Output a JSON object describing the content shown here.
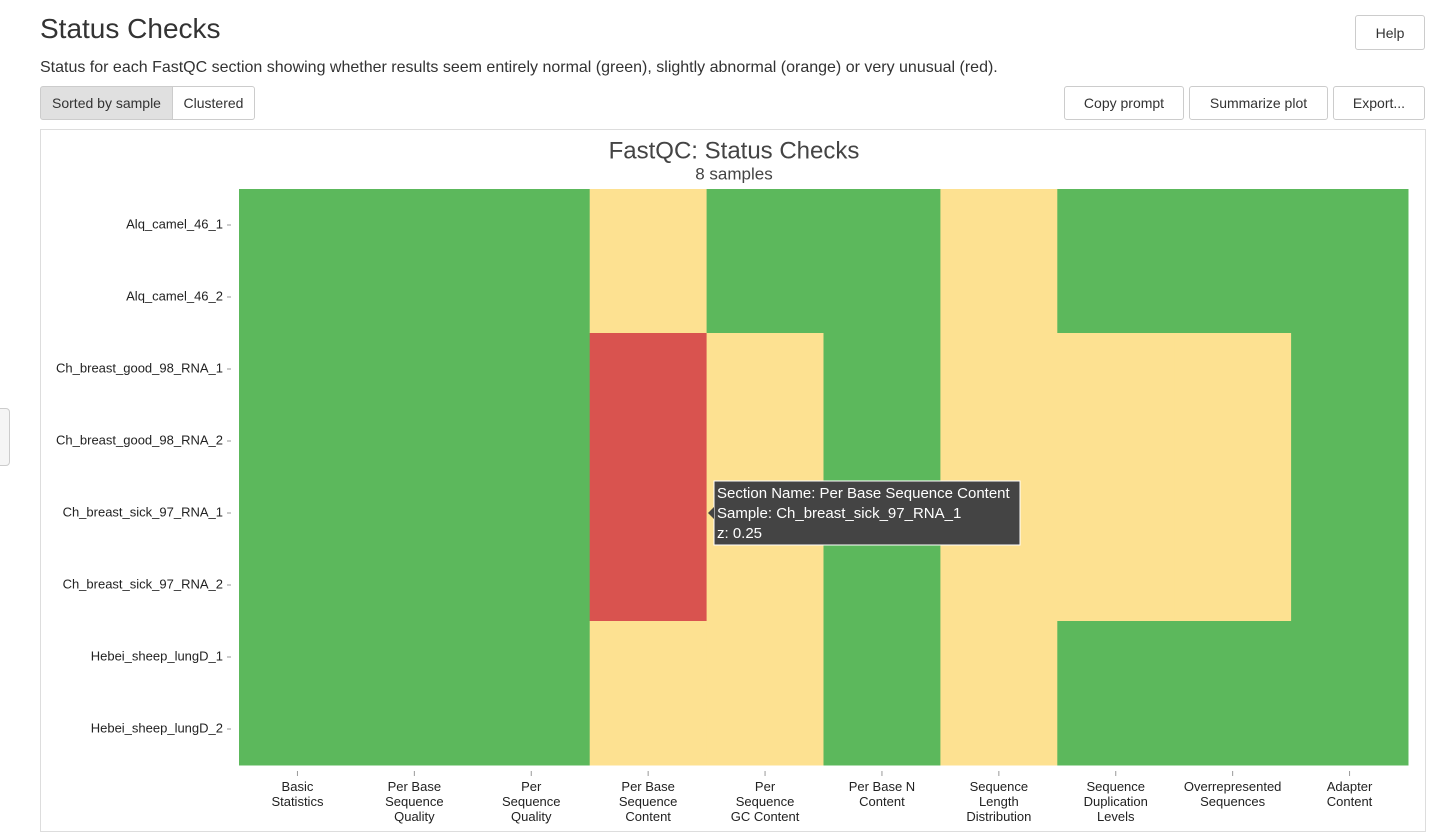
{
  "header": {
    "title": "Status Checks",
    "description": "Status for each FastQC section showing whether results seem entirely normal (green), slightly abnormal (orange) or very unusual (red).",
    "help": "Help"
  },
  "toolbar": {
    "sort_buttons": [
      "Sorted by sample",
      "Clustered"
    ],
    "actions": [
      "Copy prompt",
      "Summarize plot",
      "Export..."
    ]
  },
  "chart_data": {
    "type": "heatmap",
    "title": "FastQC: Status Checks",
    "subtitle": "8 samples",
    "categories": [
      "Basic\nStatistics",
      "Per Base\nSequence\nQuality",
      "Per\nSequence\nQuality",
      "Per Base\nSequence\nContent",
      "Per\nSequence\nGC Content",
      "Per Base N\nContent",
      "Sequence\nLength\nDistribution",
      "Sequence\nDuplication\nLevels",
      "Overrepresented\nSequences",
      "Adapter\nContent"
    ],
    "rows": [
      "Alq_camel_46_1",
      "Alq_camel_46_2",
      "Ch_breast_good_98_RNA_1",
      "Ch_breast_good_98_RNA_2",
      "Ch_breast_sick_97_RNA_1",
      "Ch_breast_sick_97_RNA_2",
      "Hebei_sheep_lungD_1",
      "Hebei_sheep_lungD_2"
    ],
    "z": [
      [
        1,
        1,
        1,
        0.5,
        1,
        1,
        0.5,
        1,
        1,
        1
      ],
      [
        1,
        1,
        1,
        0.5,
        1,
        1,
        0.5,
        1,
        1,
        1
      ],
      [
        1,
        1,
        1,
        0.25,
        0.5,
        1,
        0.5,
        0.5,
        0.5,
        1
      ],
      [
        1,
        1,
        1,
        0.25,
        0.5,
        1,
        0.5,
        0.5,
        0.5,
        1
      ],
      [
        1,
        1,
        1,
        0.25,
        0.5,
        1,
        0.5,
        0.5,
        0.5,
        1
      ],
      [
        1,
        1,
        1,
        0.25,
        0.5,
        1,
        0.5,
        0.5,
        0.5,
        1
      ],
      [
        1,
        1,
        1,
        0.5,
        0.5,
        1,
        0.5,
        1,
        1,
        1
      ],
      [
        1,
        1,
        1,
        0.5,
        0.5,
        1,
        0.5,
        1,
        1,
        1
      ]
    ],
    "colorscale": [
      {
        "value": 0.25,
        "color": "#d9534f"
      },
      {
        "value": 0.5,
        "color": "#fde191"
      },
      {
        "value": 1,
        "color": "#5cb85c"
      }
    ],
    "tooltip": [
      "Section Name: Per Base Sequence Content",
      "Sample: Ch_breast_sick_97_RNA_1",
      "z: 0.25"
    ]
  }
}
